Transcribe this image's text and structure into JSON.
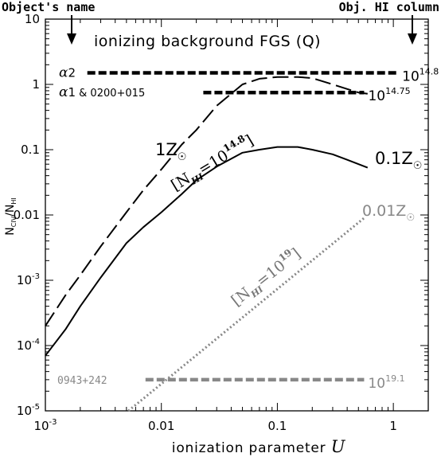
{
  "chart_data": {
    "type": "line",
    "title": "ionizing background FGS (Q)",
    "xlabel": "ionization parameter",
    "xlabel_var": "U",
    "ylabel": "N",
    "ylabel_num_sub": "CIV",
    "ylabel_den": "N",
    "ylabel_den_sub": "HI",
    "xscale": "log",
    "yscale": "log",
    "xlim": [
      0.001,
      2
    ],
    "ylim": [
      1e-05,
      10
    ],
    "x_ticks": [
      {
        "value": 0.001,
        "base": "10",
        "exp": "-3"
      },
      {
        "value": 0.01,
        "label": "0.01"
      },
      {
        "value": 0.1,
        "label": "0.1"
      },
      {
        "value": 1,
        "label": "1"
      }
    ],
    "y_ticks": [
      {
        "value": 1e-05,
        "base": "10",
        "exp": "-5"
      },
      {
        "value": 0.0001,
        "base": "10",
        "exp": "-4"
      },
      {
        "value": 0.001,
        "base": "10",
        "exp": "-3"
      },
      {
        "value": 0.01,
        "label": "0.01"
      },
      {
        "value": 0.1,
        "label": "0.1"
      },
      {
        "value": 1,
        "label": "1"
      },
      {
        "value": 10,
        "label": "10"
      }
    ],
    "series": [
      {
        "label": "1Z",
        "style": "dashed",
        "color": "#000000",
        "x": [
          0.001,
          0.0015,
          0.002,
          0.003,
          0.005,
          0.007,
          0.01,
          0.015,
          0.02,
          0.03,
          0.05,
          0.07,
          0.1,
          0.15,
          0.2,
          0.3,
          0.4,
          0.5,
          0.6
        ],
        "y": [
          0.0002,
          0.0006,
          0.0012,
          0.0033,
          0.011,
          0.024,
          0.05,
          0.12,
          0.2,
          0.47,
          1.0,
          1.22,
          1.3,
          1.3,
          1.25,
          1.0,
          0.85,
          0.75,
          0.72
        ]
      },
      {
        "label": "0.1Z",
        "style": "solid",
        "color": "#000000",
        "x": [
          0.001,
          0.0015,
          0.002,
          0.003,
          0.005,
          0.007,
          0.01,
          0.015,
          0.02,
          0.03,
          0.05,
          0.07,
          0.1,
          0.15,
          0.2,
          0.3,
          0.4,
          0.6
        ],
        "y": [
          7e-05,
          0.00018,
          0.0004,
          0.0011,
          0.0037,
          0.0065,
          0.011,
          0.021,
          0.034,
          0.055,
          0.09,
          0.1,
          0.11,
          0.11,
          0.1,
          0.085,
          0.07,
          0.053
        ]
      },
      {
        "label": "0.01Z",
        "style": "dotted",
        "color": "#888888",
        "x": [
          0.0052,
          0.56
        ],
        "y": [
          1e-05,
          0.009
        ]
      }
    ],
    "annotations": {
      "left_header": "Object's name",
      "right_header": "Obj. HI column",
      "label_1z": "1Z",
      "label_01z": "0.1Z",
      "label_001z": "0.01Z",
      "bracket_148": {
        "prefix": "[N",
        "sub": "HI",
        "mid": "=10",
        "exp": "14.8",
        "suffix": "]"
      },
      "bracket_19": {
        "prefix": "[N",
        "sub": "HI",
        "mid": "=10",
        "exp": "19",
        "suffix": "]"
      }
    },
    "observations": [
      {
        "name": "α2",
        "name_suffix": "",
        "x1": 0.0023,
        "x2": 1.1,
        "y": 1.5,
        "color": "#000000",
        "col_base": "10",
        "col_exp": "14.8"
      },
      {
        "name": "α1",
        "name_suffix": "& 0200+015",
        "x1": 0.023,
        "x2": 0.56,
        "y": 0.75,
        "color": "#000000",
        "col_base": "10",
        "col_exp": "14.75"
      },
      {
        "name": "0943+242",
        "name_suffix": "",
        "x1": 0.0073,
        "x2": 0.56,
        "y": 3e-05,
        "color": "#888888",
        "col_base": "10",
        "col_exp": "19.1"
      }
    ]
  }
}
